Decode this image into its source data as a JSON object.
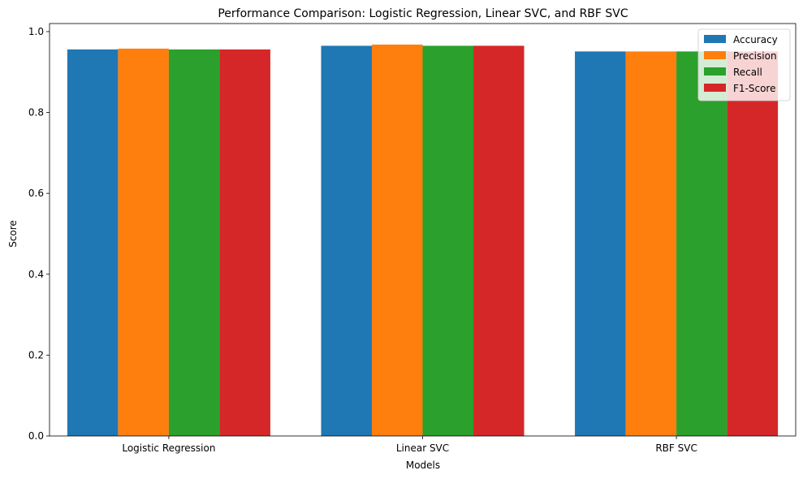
{
  "chart_data": {
    "type": "bar",
    "title": "Performance Comparison: Logistic Regression, Linear SVC, and RBF SVC",
    "xlabel": "Models",
    "ylabel": "Score",
    "categories": [
      "Logistic Regression",
      "Linear SVC",
      "RBF SVC"
    ],
    "series": [
      {
        "name": "Accuracy",
        "color": "#1f77b4",
        "values": [
          0.956,
          0.965,
          0.951
        ]
      },
      {
        "name": "Precision",
        "color": "#ff7f0e",
        "values": [
          0.958,
          0.968,
          0.951
        ]
      },
      {
        "name": "Recall",
        "color": "#2ca02c",
        "values": [
          0.956,
          0.965,
          0.951
        ]
      },
      {
        "name": "F1-Score",
        "color": "#d62728",
        "values": [
          0.956,
          0.965,
          0.951
        ]
      }
    ],
    "ylim": [
      0,
      1.02
    ],
    "yticks": [
      "0.0",
      "0.2",
      "0.4",
      "0.6",
      "0.8",
      "1.0"
    ],
    "grid": false,
    "legend_position": "top-right"
  }
}
